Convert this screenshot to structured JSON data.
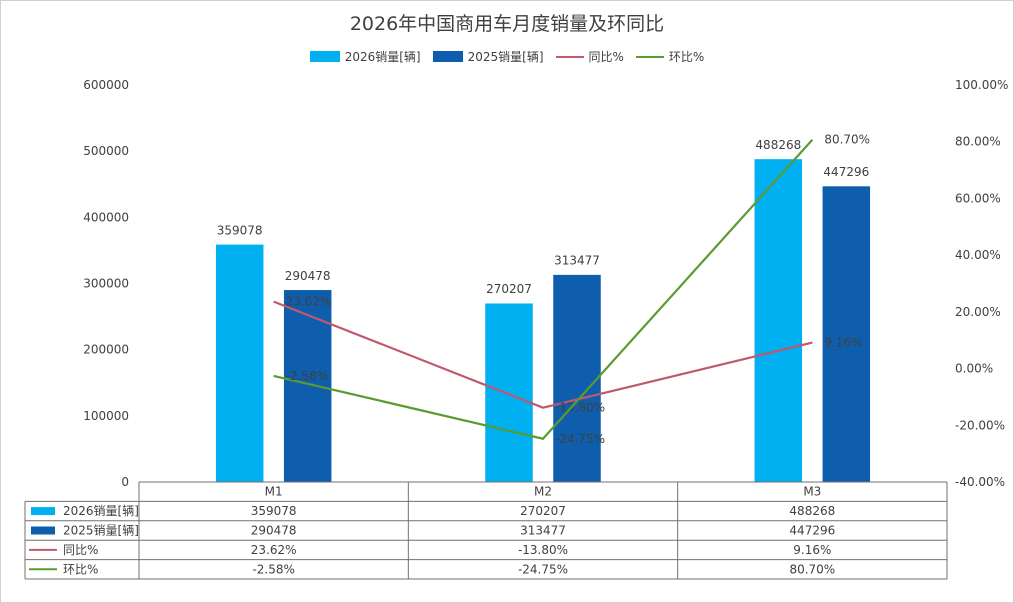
{
  "chart_data": {
    "type": "bar",
    "title": "2026年中国商用车月度销量及环同比",
    "categories": [
      "M1",
      "M2",
      "M3"
    ],
    "series": [
      {
        "name": "2026销量[辆]",
        "type": "bar",
        "axis": "left",
        "color": "#00B0F0",
        "values": [
          359078,
          270207,
          488268
        ],
        "labels": [
          "359078",
          "270207",
          "488268"
        ]
      },
      {
        "name": "2025销量[辆]",
        "type": "bar",
        "axis": "left",
        "color": "#0F5EAE",
        "values": [
          290478,
          313477,
          447296
        ],
        "labels": [
          "290478",
          "313477",
          "447296"
        ]
      },
      {
        "name": "同比%",
        "type": "line",
        "axis": "right",
        "color": "#C0586E",
        "values": [
          23.62,
          -13.8,
          9.16
        ],
        "labels": [
          "23.62%",
          "-13.80%",
          "9.16%"
        ]
      },
      {
        "name": "环比%",
        "type": "line",
        "axis": "right",
        "color": "#5A9A30",
        "values": [
          -2.58,
          -24.75,
          80.7
        ],
        "labels": [
          "-2.58%",
          "-24.75%",
          "80.70%"
        ]
      }
    ],
    "y_left": {
      "min": 0,
      "max": 600000,
      "ticks": [
        "0",
        "100000",
        "200000",
        "300000",
        "400000",
        "500000",
        "600000"
      ]
    },
    "y_right": {
      "min": -40,
      "max": 100,
      "ticks": [
        "-40.00%",
        "-20.00%",
        "0.00%",
        "20.00%",
        "40.00%",
        "60.00%",
        "80.00%",
        "100.00%"
      ]
    },
    "legend_position": "top",
    "grid": false,
    "data_table": true
  }
}
